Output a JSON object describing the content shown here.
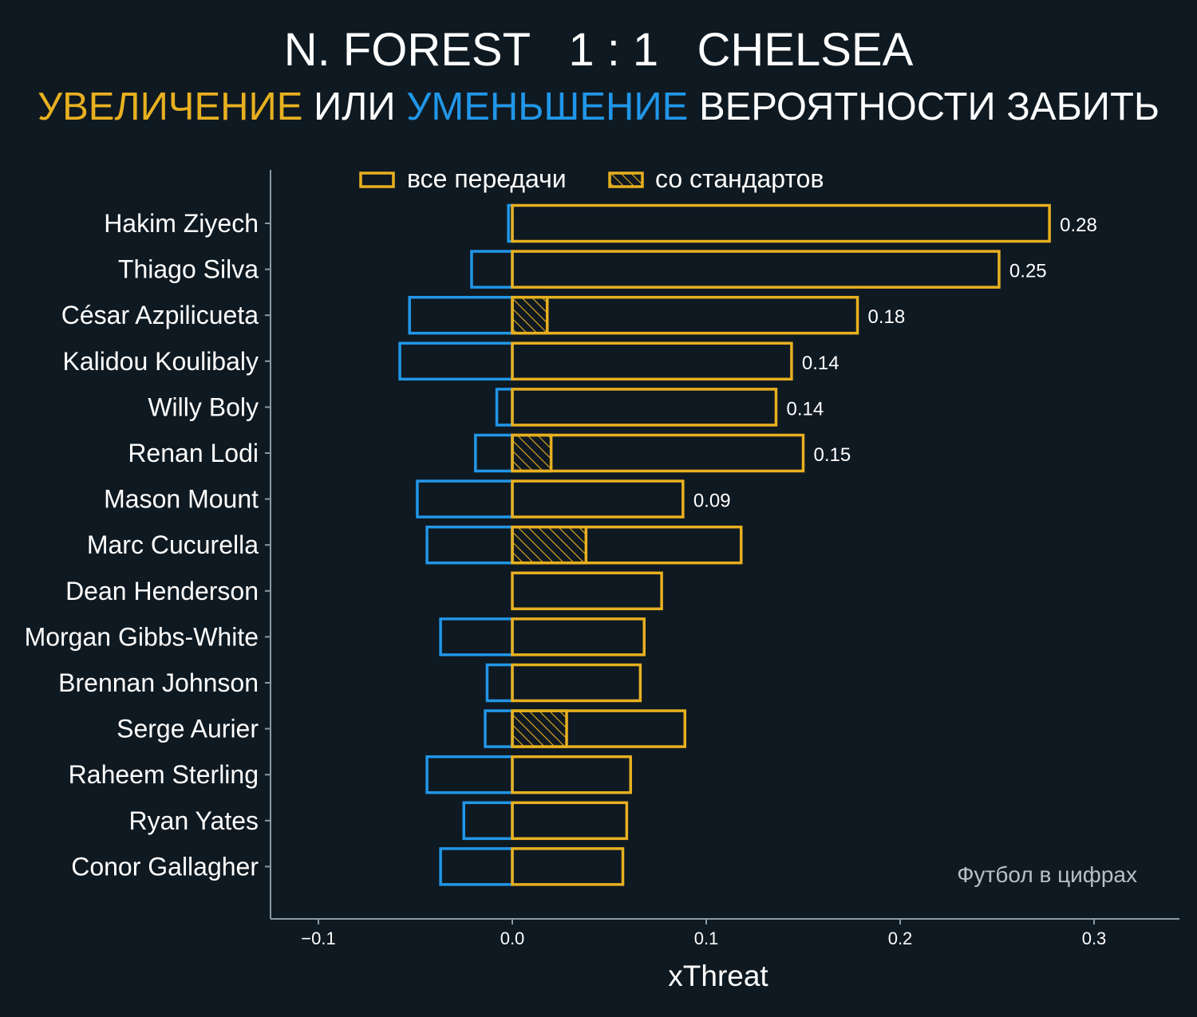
{
  "header": {
    "title": "N. FOREST   1 : 1   CHELSEA",
    "subtitle_parts": [
      "УВЕЛИЧЕНИЕ",
      " ИЛИ ",
      "УМЕНЬШЕНИЕ",
      " ВЕРОЯТНОСТИ ЗАБИТЬ"
    ]
  },
  "colors": {
    "background": "#0f1921",
    "increase": "#e8b020",
    "decrease": "#2196e8",
    "axis": "#8a9aa5",
    "credit": "#b8c0c6"
  },
  "legend": {
    "all_passes": "все передачи",
    "set_pieces": "со стандартов"
  },
  "credit": "Футбол в цифрах",
  "chart_data": {
    "type": "bar",
    "orientation": "horizontal",
    "xlabel": "xThreat",
    "xlim": [
      -0.125,
      0.345
    ],
    "xticks": [
      -0.1,
      0.0,
      0.1,
      0.2,
      0.3
    ],
    "xtick_labels": [
      "−0.1",
      "0.0",
      "0.1",
      "0.2",
      "0.3"
    ],
    "grid": false,
    "legend_placement": "top",
    "categories": [
      "Hakim Ziyech",
      "Thiago Silva",
      "César Azpilicueta",
      "Kalidou Koulibaly",
      "Willy Boly",
      "Renan Lodi",
      "Mason Mount",
      "Marc Cucurella",
      "Dean Henderson",
      "Morgan Gibbs-White",
      "Brennan Johnson",
      "Serge Aurier",
      "Raheem Sterling",
      "Ryan Yates",
      "Conor Gallagher"
    ],
    "series": [
      {
        "name": "все передачи",
        "positive": [
          0.277,
          0.251,
          0.178,
          0.144,
          0.136,
          0.15,
          0.088,
          0.118,
          0.077,
          0.068,
          0.066,
          0.089,
          0.061,
          0.059,
          0.057
        ],
        "negative": [
          -0.002,
          -0.021,
          -0.053,
          -0.058,
          -0.008,
          -0.019,
          -0.049,
          -0.044,
          0.0,
          -0.037,
          -0.013,
          -0.014,
          -0.044,
          -0.025,
          -0.037
        ]
      },
      {
        "name": "со стандартов",
        "positive": [
          0,
          0,
          0.018,
          0,
          0,
          0.02,
          0,
          0.038,
          0,
          0,
          0,
          0.028,
          0,
          0,
          0
        ]
      }
    ],
    "net_labels": [
      "0.28",
      "0.25",
      "0.18",
      "0.14",
      "0.14",
      "0.15",
      "0.09",
      "",
      "",
      "",
      "",
      "",
      "",
      "",
      ""
    ]
  }
}
